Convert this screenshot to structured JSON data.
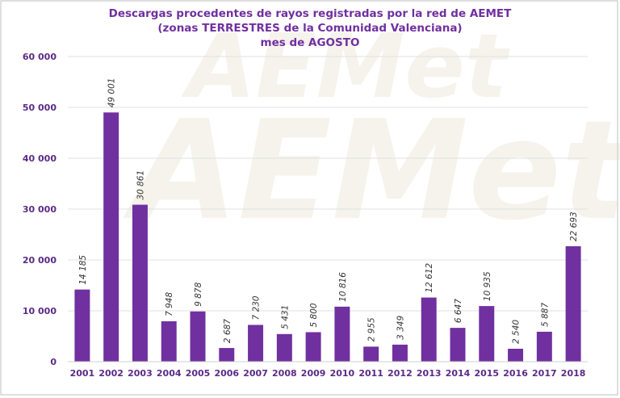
{
  "chart_data": {
    "type": "bar",
    "title": [
      "Descargas procedentes de rayos registradas por la red de AEMET",
      "(zonas TERRESTRES de la Comunidad Valenciana)",
      "mes de AGOSTO"
    ],
    "categories": [
      "2001",
      "2002",
      "2003",
      "2004",
      "2005",
      "2006",
      "2007",
      "2008",
      "2009",
      "2010",
      "2011",
      "2012",
      "2013",
      "2014",
      "2015",
      "2016",
      "2017",
      "2018"
    ],
    "values": [
      14185,
      49001,
      30861,
      7948,
      9878,
      2687,
      7230,
      5431,
      5800,
      10816,
      2955,
      3349,
      12612,
      6647,
      10935,
      2540,
      5887,
      22693
    ],
    "data_labels": [
      "14 185",
      "49 001",
      "30 861",
      "7 948",
      "9 878",
      "2 687",
      "7 230",
      "5 431",
      "5 800",
      "10 816",
      "2 955",
      "3 349",
      "12 612",
      "6 647",
      "10 935",
      "2 540",
      "5 887",
      "22 693"
    ],
    "yticks": [
      0,
      10000,
      20000,
      30000,
      40000,
      50000,
      60000
    ],
    "ytick_labels": [
      "0",
      "10 000",
      "20 000",
      "30 000",
      "40 000",
      "50 000",
      "60 000"
    ],
    "ylim": [
      0,
      60000
    ],
    "xlabel": "",
    "ylabel": "",
    "grid": true,
    "colors": {
      "bar": "#7030a0",
      "title": "#7030a0",
      "tick_text": "#5b2a86",
      "label_text": "#333333",
      "grid": "#e0e0e0",
      "frame": "#bfbfbf",
      "watermark": "#e3dfc9"
    }
  },
  "watermark": "AEMet"
}
